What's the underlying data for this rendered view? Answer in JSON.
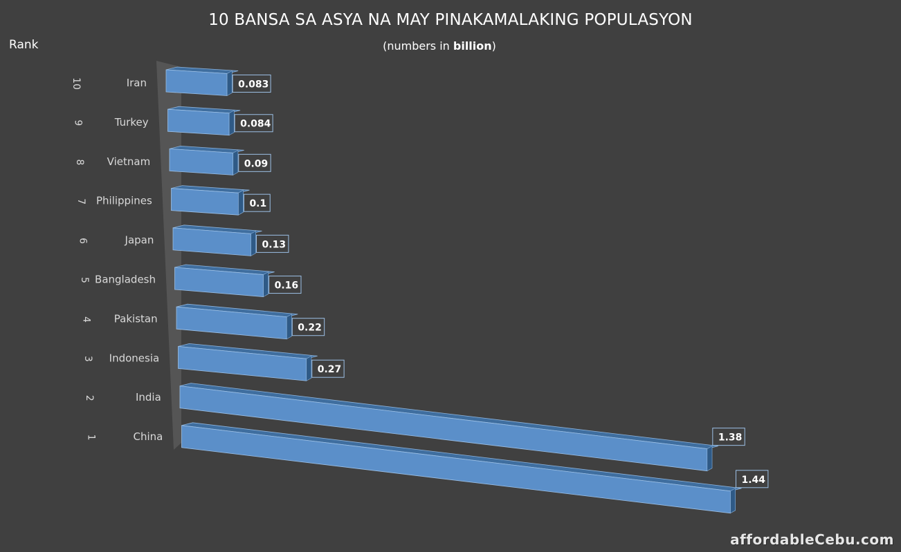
{
  "title": "10 BANSA SA ASYA NA MAY PINAKAMALAKING POPULASYON",
  "subtitle": {
    "prefix": "(numbers in ",
    "bold": "billion",
    "suffix": ")"
  },
  "rank_axis_label": "Rank",
  "watermark": "affordableCebu.com",
  "colors": {
    "background": "#404040",
    "bar_front": "#5b8fc9",
    "bar_top": "#3f6e9f",
    "bar_side": "#2f5a86",
    "wall": "#595959"
  },
  "chart_data": {
    "type": "bar",
    "orientation": "horizontal",
    "style": "3d",
    "title": "10 BANSA SA ASYA NA MAY PINAKAMALAKING POPULASYON",
    "subtitle": "(numbers in billion)",
    "ylabel": "Rank",
    "units": "billion",
    "categories": [
      "Iran",
      "Turkey",
      "Vietnam",
      "Philippines",
      "Japan",
      "Bangladesh",
      "Pakistan",
      "Indonesia",
      "India",
      "China"
    ],
    "ranks": [
      "10",
      "9",
      "8",
      "7",
      "6",
      "5",
      "4",
      "3",
      "2",
      "1"
    ],
    "values": [
      0.083,
      0.084,
      0.09,
      0.1,
      0.13,
      0.16,
      0.22,
      0.27,
      1.38,
      1.44
    ],
    "data_labels": [
      "0.083",
      "0.084",
      "0.09",
      "0.1",
      "0.13",
      "0.16",
      "0.22",
      "0.27",
      "1.38",
      "1.44"
    ],
    "grid": false,
    "legend": "none"
  }
}
